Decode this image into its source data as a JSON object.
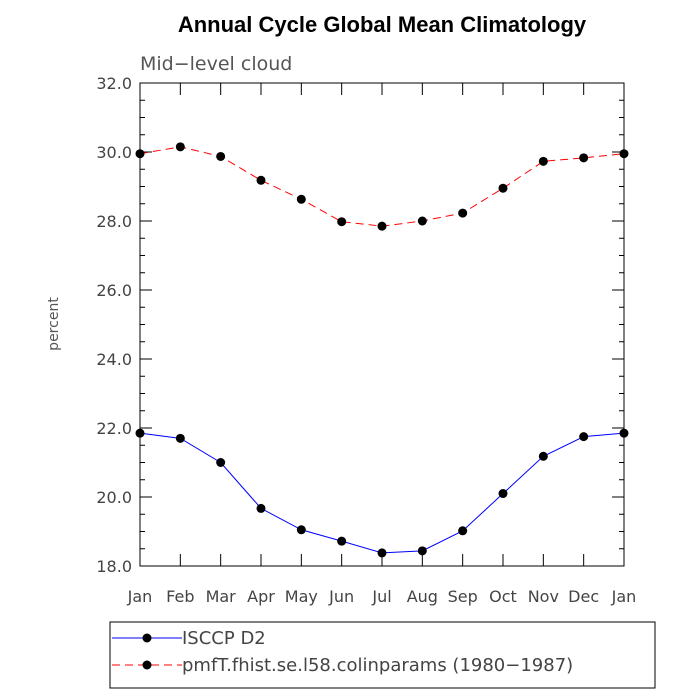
{
  "chart_data": {
    "type": "line",
    "title": "Annual Cycle Global Mean Climatology",
    "subtitle": "Mid−level cloud",
    "ylabel": "percent",
    "xlabel": "",
    "ylim": [
      18.0,
      32.0
    ],
    "yticks": [
      "18.0",
      "20.0",
      "22.0",
      "24.0",
      "26.0",
      "28.0",
      "30.0",
      "32.0"
    ],
    "categories": [
      "Jan",
      "Feb",
      "Mar",
      "Apr",
      "May",
      "Jun",
      "Jul",
      "Aug",
      "Sep",
      "Oct",
      "Nov",
      "Dec",
      "Jan"
    ],
    "series": [
      {
        "name": "ISCCP D2",
        "color": "#0000ff",
        "dash": "solid",
        "values": [
          21.85,
          21.7,
          21.0,
          19.67,
          19.05,
          18.72,
          18.38,
          18.44,
          19.02,
          20.1,
          21.18,
          21.75,
          21.85
        ]
      },
      {
        "name": "pmfT.fhist.se.l58.colinparams (1980−1987)",
        "color": "#ff0000",
        "dash": "dashed",
        "values": [
          29.95,
          30.15,
          29.87,
          29.18,
          28.63,
          27.98,
          27.85,
          28.0,
          28.23,
          28.95,
          29.73,
          29.83,
          29.95
        ]
      }
    ],
    "legend_position": "bottom",
    "grid": false
  }
}
